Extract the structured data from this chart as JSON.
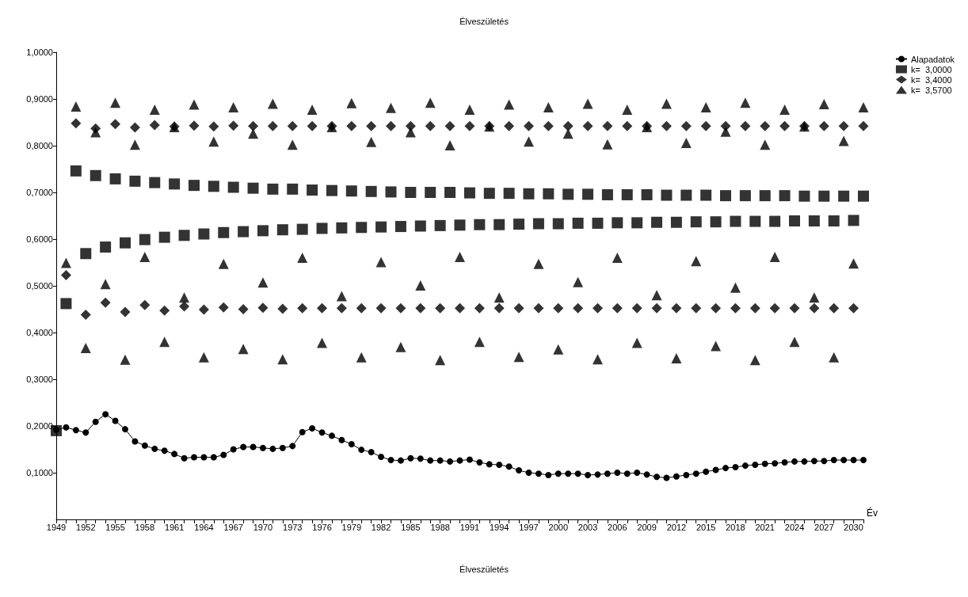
{
  "chart_data": {
    "type": "scatter",
    "title": "Élveszületés",
    "xlabel": "Év",
    "categories": [
      "1949",
      null,
      null,
      "1952",
      null,
      null,
      "1955",
      null,
      null,
      "1958",
      null,
      null,
      "1961",
      null,
      null,
      "1964",
      null,
      null,
      "1967",
      null,
      null,
      "1970",
      null,
      null,
      "1973",
      null,
      null,
      "1976",
      null,
      null,
      "1979",
      null,
      null,
      "1982",
      null,
      null,
      "1985",
      null,
      null,
      "1988",
      null,
      null,
      "1991",
      null,
      null,
      "1994",
      null,
      null,
      "1997",
      null,
      null,
      "2000",
      null,
      null,
      "2003",
      null,
      null,
      "2006",
      null,
      null,
      "2009",
      null,
      null,
      "2012",
      null,
      null,
      "2015",
      null,
      null,
      "2018",
      null,
      null,
      "2021",
      null,
      null,
      "2024",
      null,
      null,
      "2027",
      null,
      null,
      "2030",
      null
    ],
    "series": [
      {
        "name": "Alapadatok",
        "type": "line",
        "marker": "circle",
        "color": "#000000",
        "values": [
          0.192,
          0.197,
          0.191,
          0.186,
          0.209,
          0.225,
          0.211,
          0.193,
          0.167,
          0.158,
          0.151,
          0.147,
          0.14,
          0.131,
          0.133,
          0.133,
          0.133,
          0.138,
          0.15,
          0.155,
          0.155,
          0.153,
          0.151,
          0.153,
          0.157,
          0.187,
          0.195,
          0.186,
          0.179,
          0.17,
          0.161,
          0.149,
          0.144,
          0.134,
          0.127,
          0.126,
          0.131,
          0.13,
          0.126,
          0.126,
          0.124,
          0.126,
          0.128,
          0.122,
          0.118,
          0.117,
          0.113,
          0.105,
          0.1,
          0.098,
          0.095,
          0.098,
          0.098,
          0.098,
          0.095,
          0.096,
          0.098,
          0.1,
          0.098,
          0.1,
          0.096,
          0.091,
          0.089,
          0.092,
          0.095,
          0.098,
          0.102,
          0.106,
          0.11,
          0.112,
          0.115,
          0.117,
          0.119,
          0.12,
          0.122,
          0.124,
          0.124,
          0.125,
          0.125,
          0.127,
          0.127,
          0.127,
          0.127
        ]
      },
      {
        "name": "k=  3,0000",
        "marker": "square",
        "color": "#000000",
        "values": [
          0.19,
          0.462,
          0.746,
          0.569,
          0.736,
          0.583,
          0.729,
          0.592,
          0.724,
          0.599,
          0.721,
          0.604,
          0.718,
          0.608,
          0.715,
          0.611,
          0.713,
          0.614,
          0.711,
          0.616,
          0.709,
          0.618,
          0.707,
          0.62,
          0.707,
          0.621,
          0.705,
          0.623,
          0.704,
          0.624,
          0.703,
          0.625,
          0.702,
          0.626,
          0.701,
          0.627,
          0.7,
          0.628,
          0.7,
          0.629,
          0.7,
          0.63,
          0.699,
          0.631,
          0.698,
          0.631,
          0.698,
          0.632,
          0.697,
          0.633,
          0.697,
          0.633,
          0.696,
          0.634,
          0.696,
          0.634,
          0.695,
          0.635,
          0.695,
          0.635,
          0.695,
          0.636,
          0.694,
          0.636,
          0.694,
          0.637,
          0.694,
          0.637,
          0.693,
          0.638,
          0.693,
          0.638,
          0.693,
          0.638,
          0.693,
          0.639,
          0.692,
          0.639,
          0.692,
          0.639,
          0.692,
          0.64,
          0.692
        ]
      },
      {
        "name": "k=  3,4000",
        "marker": "diamond",
        "color": "#000000",
        "values": [
          null,
          0.523,
          0.848,
          0.438,
          0.837,
          0.464,
          0.846,
          0.444,
          0.839,
          0.459,
          0.844,
          0.447,
          0.841,
          0.456,
          0.843,
          0.449,
          0.841,
          0.454,
          0.843,
          0.45,
          0.842,
          0.453,
          0.842,
          0.451,
          0.842,
          0.452,
          0.842,
          0.452,
          0.842,
          0.452,
          0.842,
          0.452,
          0.842,
          0.452,
          0.842,
          0.452,
          0.842,
          0.452,
          0.842,
          0.452,
          0.842,
          0.452,
          0.842,
          0.452,
          0.842,
          0.452,
          0.842,
          0.452,
          0.842,
          0.452,
          0.842,
          0.452,
          0.842,
          0.452,
          0.842,
          0.452,
          0.842,
          0.452,
          0.842,
          0.452,
          0.842,
          0.452,
          0.842,
          0.452,
          0.842,
          0.452,
          0.842,
          0.452,
          0.842,
          0.452,
          0.842,
          0.452,
          0.842,
          0.452,
          0.842,
          0.452,
          0.842,
          0.452,
          0.842,
          0.452,
          0.842,
          0.452,
          0.842
        ]
      },
      {
        "name": "k=  3,5700",
        "marker": "triangle",
        "color": "#000000",
        "values": [
          null,
          0.549,
          0.884,
          0.367,
          0.829,
          0.504,
          0.892,
          0.342,
          0.802,
          0.562,
          0.877,
          0.38,
          0.84,
          0.475,
          0.888,
          0.347,
          0.809,
          0.547,
          0.882,
          0.365,
          0.826,
          0.507,
          0.89,
          0.343,
          0.802,
          0.56,
          0.877,
          0.378,
          0.84,
          0.478,
          0.891,
          0.347,
          0.808,
          0.551,
          0.881,
          0.369,
          0.829,
          0.501,
          0.892,
          0.341,
          0.801,
          0.562,
          0.877,
          0.38,
          0.841,
          0.475,
          0.888,
          0.348,
          0.809,
          0.547,
          0.882,
          0.364,
          0.826,
          0.508,
          0.89,
          0.343,
          0.803,
          0.56,
          0.877,
          0.378,
          0.84,
          0.48,
          0.89,
          0.345,
          0.806,
          0.553,
          0.882,
          0.371,
          0.83,
          0.496,
          0.892,
          0.341,
          0.802,
          0.562,
          0.877,
          0.38,
          0.841,
          0.475,
          0.889,
          0.347,
          0.81,
          0.548,
          0.882
        ]
      }
    ],
    "ylim": [
      0,
      1
    ],
    "yticks": [
      {
        "value": 0.1,
        "label": "0,1000"
      },
      {
        "value": 0.2,
        "label": "0,2000"
      },
      {
        "value": 0.3,
        "label": "0,3000"
      },
      {
        "value": 0.4,
        "label": "0,4000"
      },
      {
        "value": 0.5,
        "label": "0,5000"
      },
      {
        "value": 0.6,
        "label": "0,6000"
      },
      {
        "value": 0.7,
        "label": "0,7000"
      },
      {
        "value": 0.8,
        "label": "0,8000"
      },
      {
        "value": 0.9,
        "label": "0,9000"
      },
      {
        "value": 1,
        "label": "1,0000"
      }
    ],
    "grid": false,
    "legend": "top right",
    "annotations": [
      "Élveszületés"
    ]
  }
}
